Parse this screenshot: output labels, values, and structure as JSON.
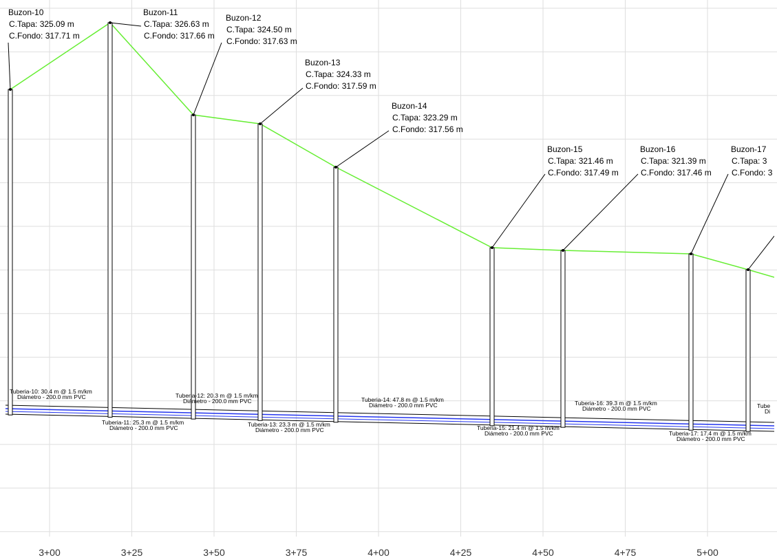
{
  "stations": [
    "3+00",
    "3+25",
    "3+50",
    "3+75",
    "4+00",
    "4+25",
    "4+50",
    "4+75",
    "5+00"
  ],
  "manholes": [
    {
      "name": "Buzon-10",
      "tapa": "C.Tapa: 325.09 m",
      "fondo": "C.Fondo: 317.71 m"
    },
    {
      "name": "Buzon-11",
      "tapa": "C.Tapa: 326.63 m",
      "fondo": "C.Fondo: 317.66 m"
    },
    {
      "name": "Buzon-12",
      "tapa": "C.Tapa: 324.50 m",
      "fondo": "C.Fondo: 317.63 m"
    },
    {
      "name": "Buzon-13",
      "tapa": "C.Tapa: 324.33 m",
      "fondo": "C.Fondo: 317.59 m"
    },
    {
      "name": "Buzon-14",
      "tapa": "C.Tapa: 323.29 m",
      "fondo": "C.Fondo: 317.56 m"
    },
    {
      "name": "Buzon-15",
      "tapa": "C.Tapa: 321.46 m",
      "fondo": "C.Fondo: 317.49 m"
    },
    {
      "name": "Buzon-16",
      "tapa": "C.Tapa: 321.39 m",
      "fondo": "C.Fondo: 317.46 m"
    },
    {
      "name": "Buzon-17",
      "tapa": "C.Tapa: 3",
      "fondo": "C.Fondo: 3"
    }
  ],
  "pipes": [
    {
      "name": "Tuberia-10: 30.4 m @ 1.5 m/km",
      "spec": "Diámetro - 200.0 mm PVC"
    },
    {
      "name": "Tuberia-11: 25.3 m @ 1.5 m/km",
      "spec": "Diámetro - 200.0 mm PVC"
    },
    {
      "name": "Tuberia-12: 20.3 m @ 1.5 m/km",
      "spec": "Diámetro - 200.0 mm PVC"
    },
    {
      "name": "Tuberia-13: 23.3 m @ 1.5 m/km",
      "spec": "Diámetro - 200.0 mm PVC"
    },
    {
      "name": "Tuberia-14: 47.8 m @ 1.5 m/km",
      "spec": "Diámetro - 200.0 mm PVC"
    },
    {
      "name": "Tuberia-15: 21.4 m @ 1.5 m/km",
      "spec": "Diámetro - 200.0 mm PVC"
    },
    {
      "name": "Tuberia-16: 39.3 m @ 1.5 m/km",
      "spec": "Diámetro - 200.0 mm PVC"
    },
    {
      "name": "Tuberia-17: 17.4 m @ 1.5 m/km",
      "spec": "Diámetro - 200.0 mm PVC"
    },
    {
      "name": "Tube",
      "spec": "Di"
    }
  ]
}
